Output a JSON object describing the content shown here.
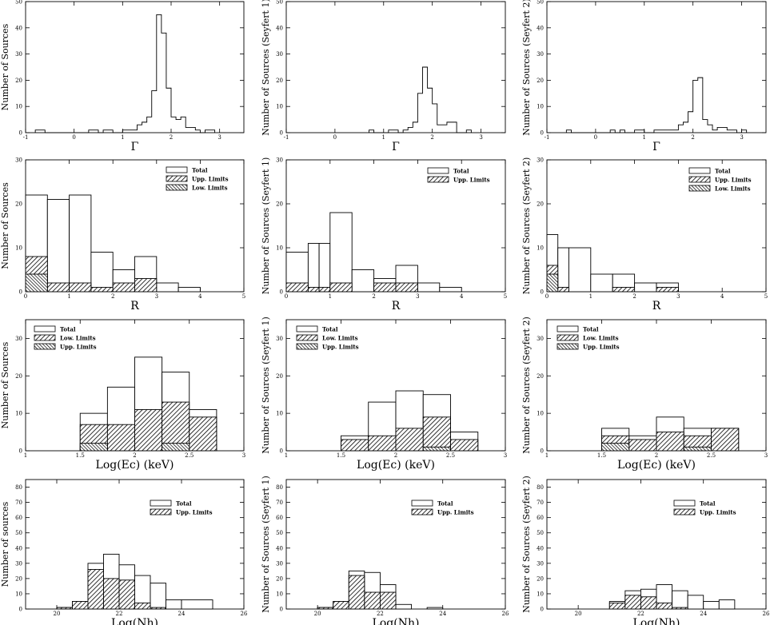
{
  "chart_data": [
    {
      "type": "bar",
      "histogram": true,
      "ylabel": "Number of Sources",
      "xlabel": "Γ",
      "xlim": [
        -1,
        3.5
      ],
      "ylim": [
        0,
        50
      ],
      "xticks": [
        "-1",
        "0",
        "1",
        "2",
        "3"
      ],
      "yticks": [
        "0",
        "10",
        "20",
        "30",
        "40",
        "50"
      ],
      "legend": [],
      "series": [
        {
          "edges": [
            -0.8,
            -0.6,
            -0.4,
            -0.2,
            0,
            0.2,
            0.4,
            0.6,
            0.8,
            1,
            1.2,
            1.4,
            1.6,
            1.8,
            2,
            2.2,
            2.4,
            2.6,
            2.8,
            3,
            3.2,
            3.4
          ],
          "values": [
            1,
            0,
            0,
            0,
            0,
            0,
            0,
            0,
            0,
            0,
            0,
            0,
            0,
            0,
            0,
            0,
            0,
            0,
            0,
            0,
            0
          ],
          "fill": "none"
        }
      ],
      "bins": {
        "start": -0.8,
        "width": 0.1,
        "values": [
          1,
          1,
          0,
          0,
          0,
          0,
          0,
          0,
          0,
          0,
          0,
          1,
          1,
          0,
          1,
          1,
          0,
          0,
          1,
          1,
          1,
          3,
          4,
          6,
          16,
          45,
          38,
          17,
          6,
          5,
          6,
          2,
          2,
          1,
          0,
          1,
          1
        ]
      }
    },
    {
      "type": "bar",
      "histogram": true,
      "ylabel": "Number of Sources (Seyfert 1)",
      "xlabel": "Γ",
      "xlim": [
        -1,
        3.5
      ],
      "ylim": [
        0,
        50
      ],
      "xticks": [
        "-1",
        "0",
        "1",
        "2",
        "3"
      ],
      "yticks": [
        "0",
        "10",
        "20",
        "30",
        "40",
        "50"
      ],
      "legend": [],
      "bins": {
        "start": 0.7,
        "width": 0.1,
        "values": [
          1,
          0,
          0,
          0,
          1,
          1,
          0,
          1,
          2,
          4,
          15,
          25,
          17,
          11,
          3,
          3,
          4,
          4,
          0,
          0,
          1
        ]
      }
    },
    {
      "type": "bar",
      "histogram": true,
      "ylabel": "Number of Sources (Seyfert 2)",
      "xlabel": "Γ",
      "xlim": [
        -1,
        3.5
      ],
      "ylim": [
        0,
        50
      ],
      "xticks": [
        "-1",
        "0",
        "1",
        "2",
        "3"
      ],
      "yticks": [
        "0",
        "10",
        "20",
        "30",
        "40",
        "50"
      ],
      "legend": [],
      "bins": {
        "start": -0.6,
        "width": 0.1,
        "values": [
          1,
          0,
          0,
          0,
          0,
          0,
          0,
          0,
          0,
          1,
          0,
          1,
          0,
          0,
          1,
          1,
          0,
          0,
          1,
          1,
          1,
          1,
          1,
          3,
          4,
          8,
          20,
          21,
          5,
          3,
          1,
          2,
          2,
          1,
          1,
          0,
          1
        ]
      }
    },
    {
      "type": "bar",
      "histogram": true,
      "ylabel": "Number of Sources",
      "xlabel": "R",
      "xlim": [
        0,
        5
      ],
      "ylim": [
        0,
        30
      ],
      "xticks": [
        "0",
        "1",
        "2",
        "3",
        "4",
        "5"
      ],
      "yticks": [
        "0",
        "10",
        "20",
        "30"
      ],
      "legend": [
        "Total",
        "Upp. Limits",
        "Low. Limits"
      ],
      "edges": [
        0,
        0.5,
        1,
        1.5,
        2,
        2.5,
        3,
        3.5,
        4
      ],
      "series": [
        {
          "name": "Total",
          "values": [
            22,
            21,
            22,
            9,
            5,
            8,
            2,
            1
          ]
        },
        {
          "name": "Upp. Limits",
          "values": [
            8,
            2,
            2,
            1,
            2,
            3,
            0,
            0
          ]
        },
        {
          "name": "Low. Limits",
          "values": [
            4,
            0,
            0,
            0,
            0,
            0,
            0,
            0
          ]
        }
      ]
    },
    {
      "type": "bar",
      "histogram": true,
      "ylabel": "Number of Sources (Seyfert 1)",
      "xlabel": "R",
      "xlim": [
        0,
        5
      ],
      "ylim": [
        0,
        30
      ],
      "xticks": [
        "0",
        "1",
        "2",
        "3",
        "4",
        "5"
      ],
      "yticks": [
        "0",
        "10",
        "20",
        "30"
      ],
      "legend": [
        "Total",
        "Upp. Limits"
      ],
      "edges": [
        0,
        0.5,
        0.75,
        1,
        1.5,
        2,
        2.5,
        3,
        3.5,
        4
      ],
      "series": [
        {
          "name": "Total",
          "values": [
            9,
            11,
            11,
            18,
            5,
            3,
            6,
            2,
            1
          ]
        },
        {
          "name": "Upp. Limits",
          "values": [
            2,
            1,
            1,
            2,
            0,
            2,
            2,
            0,
            0
          ]
        }
      ]
    },
    {
      "type": "bar",
      "histogram": true,
      "ylabel": "Number of Sources (Seyfert 2)",
      "xlabel": "R",
      "xlim": [
        0,
        5
      ],
      "ylim": [
        0,
        30
      ],
      "xticks": [
        "0",
        "1",
        "2",
        "3",
        "4",
        "5"
      ],
      "yticks": [
        "0",
        "10",
        "20",
        "30"
      ],
      "legend": [
        "Total",
        "Upp. Limits",
        "Low. Limits"
      ],
      "edges": [
        0,
        0.25,
        0.5,
        1,
        1.5,
        2,
        2.5,
        3
      ],
      "series": [
        {
          "name": "Total",
          "values": [
            13,
            10,
            10,
            4,
            4,
            2,
            2
          ]
        },
        {
          "name": "Upp. Limits",
          "values": [
            6,
            1,
            0,
            0,
            1,
            0,
            1
          ]
        },
        {
          "name": "Low. Limits",
          "values": [
            4,
            0,
            0,
            0,
            0,
            0,
            0
          ]
        }
      ]
    },
    {
      "type": "bar",
      "histogram": true,
      "ylabel": "Number of Sources",
      "xlabel": "Log(Ec)  (keV)",
      "xlim": [
        1,
        3
      ],
      "ylim": [
        0,
        35
      ],
      "xticks": [
        "1",
        "1.5",
        "2",
        "2.5",
        "3"
      ],
      "yticks": [
        "0",
        "10",
        "20",
        "30"
      ],
      "legend": [
        "Total",
        "Low. Limits",
        "Upp. Limits"
      ],
      "edges": [
        1.5,
        1.75,
        2,
        2.25,
        2.5,
        2.75
      ],
      "series": [
        {
          "name": "Total",
          "values": [
            10,
            17,
            25,
            21,
            11
          ]
        },
        {
          "name": "Low. Limits",
          "values": [
            7,
            7,
            11,
            13,
            9
          ]
        },
        {
          "name": "Upp. Limits",
          "values": [
            2,
            0,
            0,
            2,
            0
          ]
        }
      ]
    },
    {
      "type": "bar",
      "histogram": true,
      "ylabel": "Number of Sources (Seyfert 1)",
      "xlabel": "Log(Ec)  (keV)",
      "xlim": [
        1,
        3
      ],
      "ylim": [
        0,
        35
      ],
      "xticks": [
        "1",
        "1.5",
        "2",
        "2.5",
        "3"
      ],
      "yticks": [
        "0",
        "10",
        "20",
        "30"
      ],
      "legend": [
        "Total",
        "Low. Limits",
        "Upp. Limits"
      ],
      "edges": [
        1.5,
        1.75,
        2,
        2.25,
        2.5,
        2.75
      ],
      "series": [
        {
          "name": "Total",
          "values": [
            4,
            13,
            16,
            15,
            5
          ]
        },
        {
          "name": "Low. Limits",
          "values": [
            3,
            4,
            6,
            9,
            3
          ]
        },
        {
          "name": "Upp. Limits",
          "values": [
            0,
            0,
            0,
            1,
            0
          ]
        }
      ]
    },
    {
      "type": "bar",
      "histogram": true,
      "ylabel": "Number of Sources (Seyfert 2)",
      "xlabel": "Log(Ec)  (keV)",
      "xlim": [
        1,
        3
      ],
      "ylim": [
        0,
        35
      ],
      "xticks": [
        "1",
        "1.5",
        "2",
        "2.5",
        "3"
      ],
      "yticks": [
        "0",
        "10",
        "20",
        "30"
      ],
      "legend": [
        "Total",
        "Low. Limits",
        "Upp. Limits"
      ],
      "edges": [
        1.5,
        1.75,
        2,
        2.25,
        2.5,
        2.75
      ],
      "series": [
        {
          "name": "Total",
          "values": [
            6,
            4,
            9,
            6,
            6
          ]
        },
        {
          "name": "Low. Limits",
          "values": [
            4,
            3,
            5,
            4,
            6
          ]
        },
        {
          "name": "Upp. Limits",
          "values": [
            2,
            0,
            0,
            1,
            0
          ]
        }
      ]
    },
    {
      "type": "bar",
      "histogram": true,
      "ylabel": "Number of sources",
      "xlabel": "Log(Nh)",
      "xlim": [
        19,
        26
      ],
      "ylim": [
        0,
        85
      ],
      "xticks": [
        "20",
        "22",
        "24",
        "26"
      ],
      "yticks": [
        "0",
        "10",
        "20",
        "30",
        "40",
        "50",
        "60",
        "70",
        "80"
      ],
      "legend": [
        "Total",
        "Upp. Limits"
      ],
      "edges": [
        20,
        20.5,
        21,
        21.5,
        22,
        22.5,
        23,
        23.5,
        24,
        25
      ],
      "series": [
        {
          "name": "Total",
          "values": [
            1,
            5,
            30,
            36,
            29,
            22,
            17,
            6,
            6
          ]
        },
        {
          "name": "Upp. Limits",
          "values": [
            1,
            5,
            26,
            20,
            19,
            4,
            1,
            0,
            0
          ]
        }
      ]
    },
    {
      "type": "bar",
      "histogram": true,
      "ylabel": "Number of Sources (Seyfert 1)",
      "xlabel": "Log(Nh)",
      "xlim": [
        19,
        26
      ],
      "ylim": [
        0,
        85
      ],
      "xticks": [
        "20",
        "22",
        "24",
        "26"
      ],
      "yticks": [
        "0",
        "10",
        "20",
        "30",
        "40",
        "50",
        "60",
        "70",
        "80"
      ],
      "legend": [
        "Total",
        "Upp. Limits"
      ],
      "edges": [
        20,
        20.5,
        21,
        21.5,
        22,
        22.5,
        23,
        23.5,
        24
      ],
      "series": [
        {
          "name": "Total",
          "values": [
            1,
            5,
            25,
            24,
            16,
            3,
            0,
            1
          ]
        },
        {
          "name": "Upp. Limits",
          "values": [
            1,
            5,
            22,
            11,
            11,
            0,
            0,
            0
          ]
        }
      ]
    },
    {
      "type": "bar",
      "histogram": true,
      "ylabel": "Number of Sources (Seyfert 2)",
      "xlabel": "Log(Nh)",
      "xlim": [
        19,
        26
      ],
      "ylim": [
        0,
        85
      ],
      "xticks": [
        "20",
        "22",
        "24",
        "26"
      ],
      "yticks": [
        "0",
        "10",
        "20",
        "30",
        "40",
        "50",
        "60",
        "70",
        "80"
      ],
      "legend": [
        "Total",
        "Upp. Limits"
      ],
      "edges": [
        21,
        21.5,
        22,
        22.5,
        23,
        23.5,
        24,
        24.5,
        25
      ],
      "series": [
        {
          "name": "Total",
          "values": [
            5,
            12,
            13,
            16,
            12,
            9,
            5,
            6
          ]
        },
        {
          "name": "Upp. Limits",
          "values": [
            4,
            9,
            8,
            4,
            1,
            0,
            0,
            0
          ]
        }
      ]
    }
  ]
}
